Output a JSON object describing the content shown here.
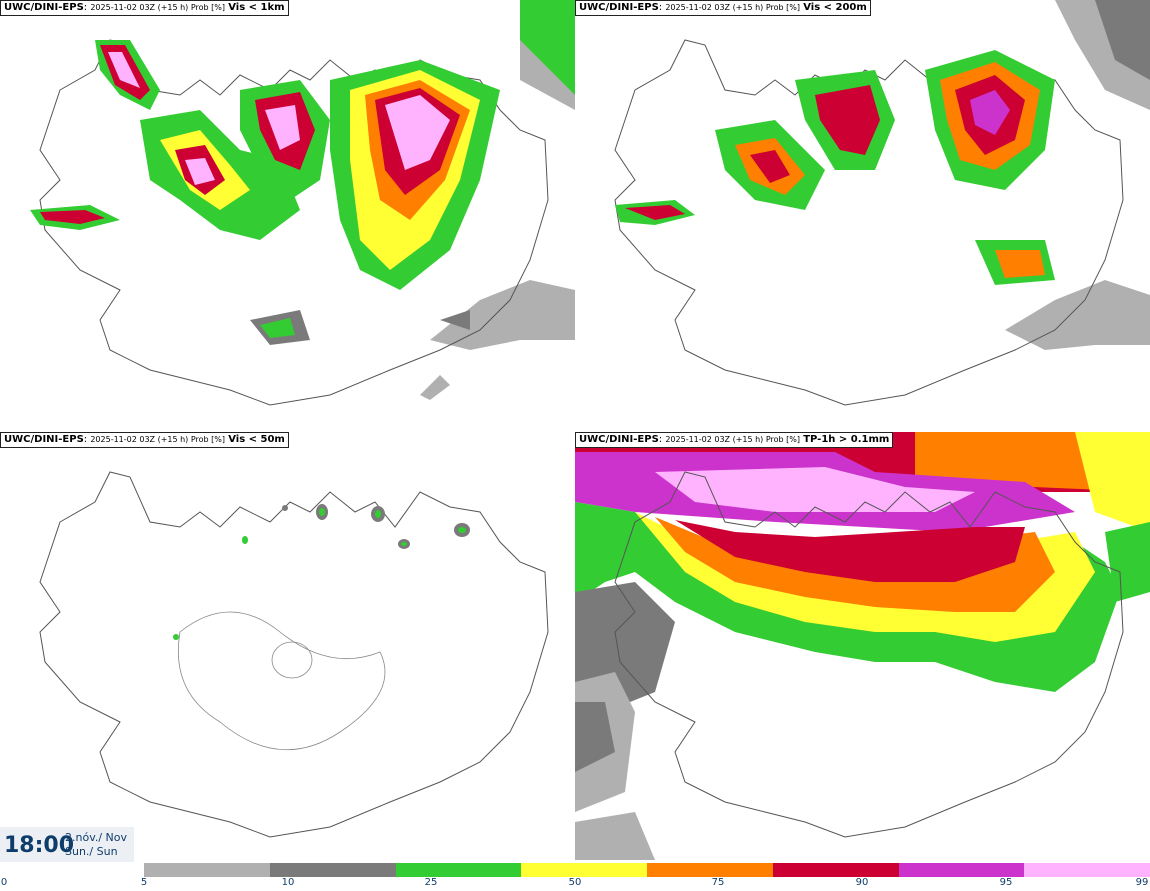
{
  "panels": [
    {
      "model": "UWC/DINI-EPS",
      "meta": "2025-11-02 03Z (+15 h) Prob [%]",
      "variable": "Vis < 1km"
    },
    {
      "model": "UWC/DINI-EPS",
      "meta": "2025-11-02 03Z (+15 h) Prob [%]",
      "variable": "Vis < 200m"
    },
    {
      "model": "UWC/DINI-EPS",
      "meta": "2025-11-02 03Z (+15 h) Prob [%]",
      "variable": "Vis < 50m"
    },
    {
      "model": "UWC/DINI-EPS",
      "meta": "2025-11-02 03Z (+15 h) Prob [%]",
      "variable": "TP-1h > 0.1mm"
    }
  ],
  "time": {
    "clock": "18:00",
    "date_line1": "2.nóv./ Nov",
    "date_line2": "Sun./ Sun"
  },
  "legend": {
    "colors": [
      "#b0b0b0",
      "#7a7a7a",
      "#33cc33",
      "#ffff33",
      "#ff7f00",
      "#cc0033",
      "#cc33cc",
      "#ffb3ff"
    ],
    "ticks": [
      "0",
      "5",
      "10",
      "25",
      "50",
      "75",
      "90",
      "95",
      "99"
    ]
  }
}
